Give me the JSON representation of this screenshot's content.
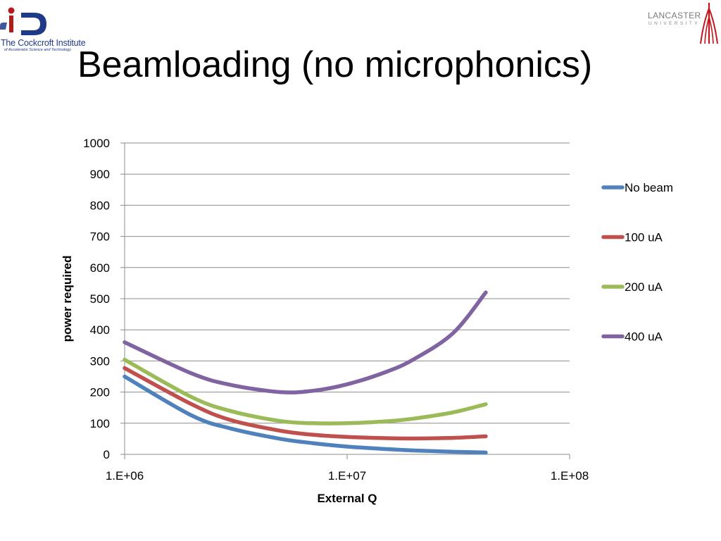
{
  "slide": {
    "title": "Beamloading (no microphonics)"
  },
  "logos": {
    "left": {
      "name": "The Cockcroft Institute",
      "subtitle": "of Accelerator Science and Technology",
      "icon": "cockcroft-logo-icon"
    },
    "right": {
      "name": "LANCASTER",
      "subtitle": "UNIVERSITY",
      "icon": "lancaster-logo-icon"
    }
  },
  "colors": {
    "No beam": "#4f81bd",
    "100 uA": "#c0504d",
    "200 uA": "#9bbb59",
    "400 uA": "#8064a2",
    "grid": "#8c8c8c"
  },
  "chart_data": {
    "type": "line",
    "xlabel": "External Q",
    "ylabel": "power required",
    "x_scale": "log",
    "xlim": [
      1000000,
      100000000
    ],
    "ylim": [
      0,
      1000
    ],
    "x_tick_labels": [
      "1.E+06",
      "1.E+07",
      "1.E+08"
    ],
    "y_tick_labels": [
      "0",
      "100",
      "200",
      "300",
      "400",
      "500",
      "600",
      "700",
      "800",
      "900",
      "1000"
    ],
    "grid": "horizontal",
    "legend_position": "right",
    "x": [
      1000000,
      2000000,
      3000000,
      5000000,
      7000000,
      10000000,
      15000000,
      20000000,
      30000000,
      42000000
    ],
    "series": [
      {
        "name": "No beam",
        "values": [
          250,
          125,
          83,
          50,
          36,
          25,
          17,
          12.5,
          8.3,
          6
        ]
      },
      {
        "name": "100 uA",
        "values": [
          277,
          161,
          110,
          76,
          63,
          56,
          52,
          51,
          53,
          58
        ]
      },
      {
        "name": "200 uA",
        "values": [
          304,
          184,
          139,
          107,
          100,
          100,
          106,
          115,
          135,
          161
        ]
      },
      {
        "name": "400 uA",
        "values": [
          360,
          260,
          223,
          200,
          204,
          225,
          265,
          306,
          390,
          520
        ]
      }
    ]
  }
}
